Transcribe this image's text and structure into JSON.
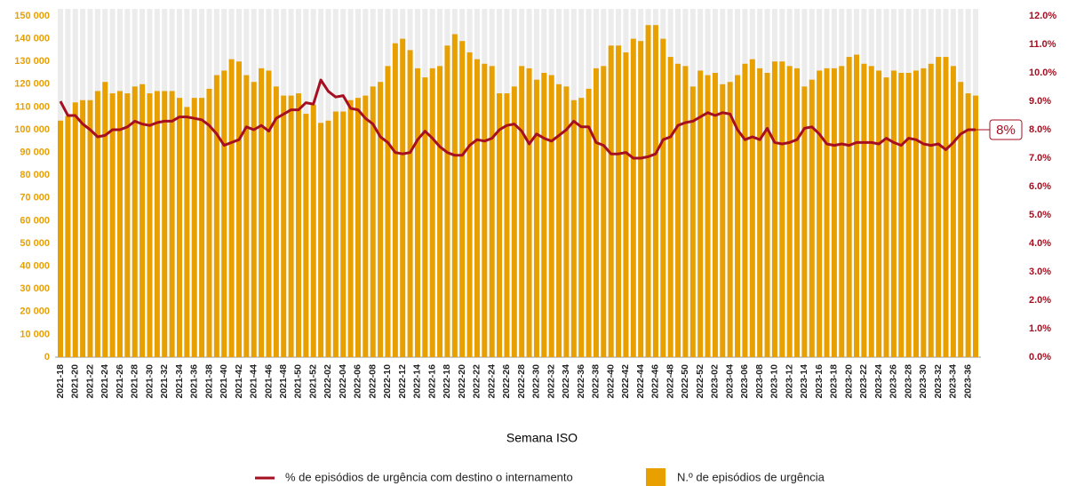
{
  "chart_data": {
    "type": "bar",
    "x_label": "Semana ISO",
    "annotation": "8%",
    "categories": [
      "2021-18",
      null,
      "2021-20",
      null,
      "2021-22",
      null,
      "2021-24",
      null,
      "2021-26",
      null,
      "2021-28",
      null,
      "2021-30",
      null,
      "2021-32",
      null,
      "2021-34",
      null,
      "2021-36",
      null,
      "2021-38",
      null,
      "2021-40",
      null,
      "2021-42",
      null,
      "2021-44",
      null,
      "2021-46",
      null,
      "2021-48",
      null,
      "2021-50",
      null,
      "2021-52",
      null,
      "2022-02",
      null,
      "2022-04",
      null,
      "2022-06",
      null,
      "2022-08",
      null,
      "2022-10",
      null,
      "2022-12",
      null,
      "2022-14",
      null,
      "2022-16",
      null,
      "2022-18",
      null,
      "2022-20",
      null,
      "2022-22",
      null,
      "2022-24",
      null,
      "2022-26",
      null,
      "2022-28",
      null,
      "2022-30",
      null,
      "2022-32",
      null,
      "2022-34",
      null,
      "2022-36",
      null,
      "2022-38",
      null,
      "2022-40",
      null,
      "2022-42",
      null,
      "2022-44",
      null,
      "2022-46",
      null,
      "2022-48",
      null,
      "2022-50",
      null,
      "2022-52",
      null,
      "2023-02",
      null,
      "2023-04",
      null,
      "2023-06",
      null,
      "2023-08",
      null,
      "2023-10",
      null,
      "2023-12",
      null,
      "2023-14",
      null,
      "2023-16",
      null,
      "2023-18",
      null,
      "2023-20",
      null,
      "2023-22",
      null,
      "2023-24",
      null,
      "2023-26",
      null,
      "2023-28",
      null,
      "2023-30",
      null,
      "2023-32",
      null,
      "2023-34",
      null,
      "2023-36",
      null
    ],
    "series": [
      {
        "name": "N.º de episódios de urgência",
        "type": "bar",
        "axis": "y",
        "color": "#e8a000",
        "values": [
          104000,
          106000,
          112000,
          113000,
          113000,
          117000,
          121000,
          116000,
          117000,
          116000,
          119000,
          120000,
          116000,
          117000,
          117000,
          117000,
          114000,
          110000,
          114000,
          114000,
          118000,
          124000,
          126000,
          131000,
          130000,
          124000,
          121000,
          127000,
          126000,
          119000,
          115000,
          115000,
          116000,
          107000,
          111000,
          103000,
          104000,
          108000,
          108000,
          113000,
          114000,
          115000,
          119000,
          121000,
          128000,
          138000,
          140000,
          135000,
          127000,
          123000,
          127000,
          128000,
          137000,
          142000,
          139000,
          134000,
          131000,
          129000,
          128000,
          116000,
          116000,
          119000,
          128000,
          127000,
          122000,
          125000,
          124000,
          120000,
          119000,
          113000,
          114000,
          118000,
          127000,
          128000,
          137000,
          137000,
          134000,
          140000,
          139000,
          146000,
          146000,
          140000,
          132000,
          129000,
          128000,
          119000,
          126000,
          124000,
          125000,
          120000,
          121000,
          124000,
          129000,
          131000,
          127000,
          125000,
          130000,
          130000,
          128000,
          127000,
          119000,
          122000,
          126000,
          127000,
          127000,
          128000,
          132000,
          133000,
          129000,
          128000,
          126000,
          123000,
          126000,
          125000,
          125000,
          126000,
          127000,
          129000,
          132000,
          132000,
          128000,
          121000,
          116000,
          115000
        ]
      },
      {
        "name": "% de episódios de urgência com destino o internamento",
        "type": "line",
        "axis": "y2",
        "color": "#a50f21",
        "values": [
          9.0,
          8.5,
          8.5,
          8.2,
          8.0,
          7.75,
          7.8,
          8.0,
          8.0,
          8.1,
          8.3,
          8.2,
          8.15,
          8.25,
          8.3,
          8.3,
          8.45,
          8.45,
          8.4,
          8.35,
          8.15,
          7.85,
          7.45,
          7.55,
          7.65,
          8.1,
          8.0,
          8.15,
          7.95,
          8.4,
          8.55,
          8.7,
          8.7,
          8.95,
          8.9,
          9.75,
          9.35,
          9.15,
          9.2,
          8.75,
          8.7,
          8.4,
          8.2,
          7.75,
          7.55,
          7.2,
          7.15,
          7.2,
          7.65,
          7.95,
          7.7,
          7.4,
          7.2,
          7.1,
          7.1,
          7.45,
          7.65,
          7.6,
          7.7,
          8.0,
          8.15,
          8.2,
          7.95,
          7.5,
          7.85,
          7.7,
          7.6,
          7.8,
          8.0,
          8.3,
          8.1,
          8.1,
          7.55,
          7.45,
          7.15,
          7.15,
          7.2,
          7.0,
          7.0,
          7.05,
          7.15,
          7.65,
          7.75,
          8.15,
          8.25,
          8.3,
          8.45,
          8.6,
          8.5,
          8.6,
          8.55,
          8.0,
          7.65,
          7.75,
          7.65,
          8.05,
          7.55,
          7.5,
          7.55,
          7.65,
          8.05,
          8.1,
          7.85,
          7.5,
          7.45,
          7.5,
          7.45,
          7.55,
          7.55,
          7.55,
          7.5,
          7.7,
          7.55,
          7.45,
          7.7,
          7.65,
          7.5,
          7.45,
          7.5,
          7.3,
          7.55,
          7.85,
          8.0,
          8.0
        ]
      }
    ],
    "ylim": [
      0,
      150000
    ],
    "yticks": [
      0,
      {
        "value": 10000,
        "label": "10 000"
      },
      {
        "value": 20000,
        "label": "20 000"
      },
      {
        "value": 30000,
        "label": "30 000"
      },
      {
        "value": 40000,
        "label": "40 000"
      },
      {
        "value": 50000,
        "label": "50 000"
      },
      {
        "value": 60000,
        "label": "60 000"
      },
      {
        "value": 70000,
        "label": "70 000"
      },
      {
        "value": 80000,
        "label": "80 000"
      },
      {
        "value": 90000,
        "label": "90 000"
      },
      {
        "value": 100000,
        "label": "100 000"
      },
      {
        "value": 110000,
        "label": "110 000"
      },
      {
        "value": 120000,
        "label": "120 000"
      },
      {
        "value": 130000,
        "label": "130 000"
      },
      {
        "value": 140000,
        "label": "140 000"
      },
      {
        "value": 150000,
        "label": "150 000"
      }
    ],
    "y2lim": [
      0,
      12
    ],
    "y2ticks": [
      {
        "value": 0,
        "label": "0.0%"
      },
      {
        "value": 1,
        "label": "1.0%"
      },
      {
        "value": 2,
        "label": "2.0%"
      },
      {
        "value": 3,
        "label": "3.0%"
      },
      {
        "value": 4,
        "label": "4.0%"
      },
      {
        "value": 5,
        "label": "5.0%"
      },
      {
        "value": 6,
        "label": "6.0%"
      },
      {
        "value": 7,
        "label": "7.0%"
      },
      {
        "value": 8,
        "label": "8.0%"
      },
      {
        "value": 9,
        "label": "9.0%"
      },
      {
        "value": 10,
        "label": "10.0%"
      },
      {
        "value": 11,
        "label": "11.0%"
      },
      {
        "value": 12,
        "label": "12.0%"
      }
    ],
    "legend": "bottom"
  }
}
